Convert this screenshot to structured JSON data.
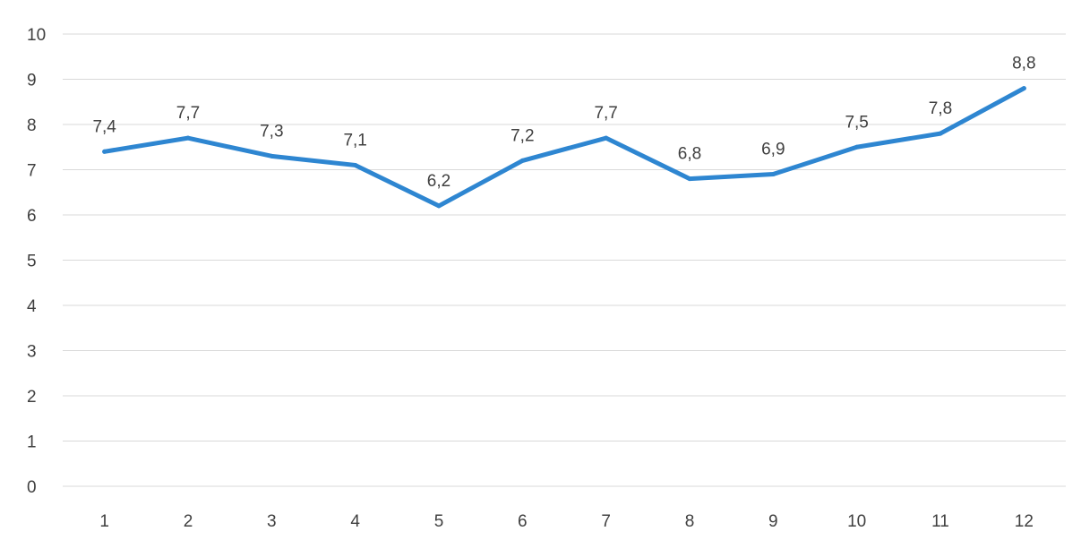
{
  "chart_data": {
    "type": "line",
    "categories": [
      "1",
      "2",
      "3",
      "4",
      "5",
      "6",
      "7",
      "8",
      "9",
      "10",
      "11",
      "12"
    ],
    "series": [
      {
        "values": [
          7.4,
          7.7,
          7.3,
          7.1,
          6.2,
          7.2,
          7.7,
          6.8,
          6.9,
          7.5,
          7.8,
          8.8
        ],
        "data_labels": [
          "7,4",
          "7,7",
          "7,3",
          "7,1",
          "6,2",
          "7,2",
          "7,7",
          "6,8",
          "6,9",
          "7,5",
          "7,8",
          "8,8"
        ],
        "color": "#2e86d1"
      }
    ],
    "ylim": [
      0,
      10
    ],
    "yticks": [
      0,
      1,
      2,
      3,
      4,
      5,
      6,
      7,
      8,
      9,
      10
    ],
    "ytick_labels": [
      "0",
      "1",
      "2",
      "3",
      "4",
      "5",
      "6",
      "7",
      "8",
      "9",
      "10"
    ],
    "grid": true,
    "legend": "none",
    "colors": {
      "line": "#2e86d1",
      "grid": "#d9d9d9",
      "text": "#404040"
    }
  }
}
